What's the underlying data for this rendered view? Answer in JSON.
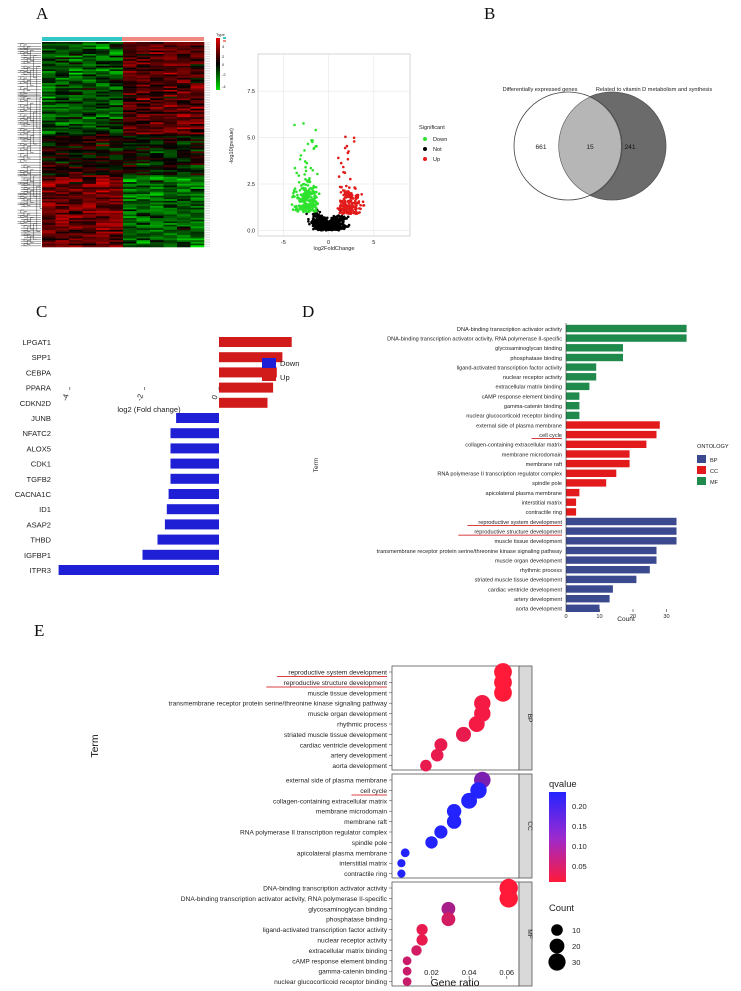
{
  "panel_labels": {
    "A": "A",
    "B": "B",
    "C": "C",
    "D": "D",
    "E": "E"
  },
  "colors": {
    "down_blue": "#1f1fd6",
    "up_red": "#d11a1a",
    "volcano_down": "#2ee22e",
    "volcano_up": "#e21a1a",
    "bp": "#3b4a8f",
    "cc": "#e31a1c",
    "mf": "#1f8a4c",
    "heat_low": "#00e000",
    "heat_high": "#e00000",
    "venn_left": "#ffffff",
    "venn_right": "#6b6b6b"
  },
  "chart_data": [
    {
      "panel": "A-heatmap",
      "type": "heatmap",
      "columns": 12,
      "rows": 120,
      "groups": [
        "left",
        "right"
      ],
      "legend_ticks": [
        "4",
        "2",
        "0",
        "-2",
        "-4"
      ],
      "legend_title": "Type"
    },
    {
      "panel": "A-volcano",
      "type": "scatter",
      "xlabel": "log2FoldChange",
      "ylabel": "-log10(pvalue)",
      "xticks": [
        -5,
        0,
        5
      ],
      "yticks": [
        0.0,
        2.5,
        5.0,
        7.5
      ],
      "xlim": [
        -7.8,
        9.0
      ],
      "ylim": [
        -0.3,
        9.5
      ],
      "legend_title": "Significant",
      "series": [
        {
          "name": "Down",
          "color": "#2ee22e"
        },
        {
          "name": "Not",
          "color": "#000000"
        },
        {
          "name": "Up",
          "color": "#e21a1a"
        }
      ]
    },
    {
      "panel": "B",
      "type": "venn",
      "set_labels": [
        "Differentially expressed genes",
        "Related to vitamin D metabolism and synthesis"
      ],
      "values": {
        "left_only": 661,
        "intersection": 15,
        "right_only": 241
      }
    },
    {
      "panel": "C",
      "type": "bar",
      "orientation": "horizontal",
      "categories": [
        "LPGAT1",
        "SPP1",
        "CEBPA",
        "PPARA",
        "CDKN2D",
        "JUNB",
        "NFATC2",
        "ALOX5",
        "CDK1",
        "TGFB2",
        "CACNA1C",
        "ID1",
        "ASAP2",
        "THBD",
        "IGFBP1",
        "ITPR3"
      ],
      "values": [
        1.95,
        1.7,
        1.55,
        1.45,
        1.3,
        -1.15,
        -1.3,
        -1.3,
        -1.3,
        -1.3,
        -1.35,
        -1.4,
        -1.45,
        -1.65,
        -2.05,
        -4.3
      ],
      "xlabel": "log2 (Fold change)",
      "xticks": [
        -4,
        -2,
        0
      ],
      "xlim": [
        -4.5,
        2.2
      ],
      "legend": [
        {
          "name": "Down",
          "color": "#1f1fd6"
        },
        {
          "name": "Up",
          "color": "#d11a1a"
        }
      ]
    },
    {
      "panel": "D",
      "type": "bar",
      "orientation": "horizontal",
      "xlabel": "Count",
      "ylabel": "Term",
      "xticks": [
        0,
        10,
        20,
        30
      ],
      "xlim": [
        0,
        36
      ],
      "legend_title": "ONTOLOGY",
      "legend": [
        {
          "name": "BP",
          "color": "#3b4a8f"
        },
        {
          "name": "CC",
          "color": "#e31a1c"
        },
        {
          "name": "MF",
          "color": "#1f8a4c"
        }
      ],
      "categories": [
        "DNA-binding transcription activator activity",
        "DNA-binding transcription activator activity, RNA polymerase II-specific",
        "glycosaminoglycan binding",
        "phosphatase binding",
        "ligand-activated transcription factor activity",
        "nuclear receptor activity",
        "extracellular matrix binding",
        "cAMP response element binding",
        "gamma-catenin binding",
        "nuclear glucocorticoid receptor binding",
        "external side of plasma membrane",
        "cell cycle",
        "collagen-containing extracellular matrix",
        "membrane microdomain",
        "membrane raft",
        "RNA polymerase II transcription regulator complex",
        "spindle pole",
        "apicolateral plasma membrane",
        "interstitial matrix",
        "contractile ring",
        "reproductive system development",
        "reproductive structure development",
        "muscle tissue development",
        "transmembrane receptor protein serine/threonine kinase signaling pathway",
        "muscle organ development",
        "rhythmic process",
        "striated muscle tissue development",
        "cardiac ventricle development",
        "artery development",
        "aorta development"
      ],
      "values": [
        36,
        36,
        17,
        17,
        9,
        9,
        7,
        4,
        4,
        4,
        28,
        27,
        24,
        19,
        19,
        15,
        12,
        4,
        3,
        3,
        33,
        33,
        33,
        27,
        27,
        25,
        21,
        14,
        13,
        10
      ],
      "ontology": [
        "MF",
        "MF",
        "MF",
        "MF",
        "MF",
        "MF",
        "MF",
        "MF",
        "MF",
        "MF",
        "CC",
        "CC",
        "CC",
        "CC",
        "CC",
        "CC",
        "CC",
        "CC",
        "CC",
        "CC",
        "BP",
        "BP",
        "BP",
        "BP",
        "BP",
        "BP",
        "BP",
        "BP",
        "BP",
        "BP"
      ],
      "underlined": [
        "cell cycle",
        "reproductive system development",
        "reproductive structure development"
      ]
    },
    {
      "panel": "E",
      "type": "scatter",
      "xlabel": "Gene ratio",
      "ylabel": "Term",
      "xticks": [
        0.02,
        0.04,
        0.06
      ],
      "xlim": [
        -0.001,
        0.0665
      ],
      "facets": [
        "BP",
        "CC",
        "MF"
      ],
      "color_legend": {
        "title": "qvalue",
        "ticks": [
          0.2,
          0.15,
          0.1,
          0.05
        ]
      },
      "size_legend": {
        "title": "Count",
        "values": [
          10,
          20,
          30
        ]
      },
      "groups": [
        {
          "facet": "BP",
          "terms": [
            "reproductive system development",
            "reproductive structure development",
            "muscle tissue development",
            "transmembrane receptor protein serine/threonine kinase signaling pathway",
            "muscle organ development",
            "rhythmic process",
            "striated muscle tissue development",
            "cardiac ventricle development",
            "artery development",
            "aorta development"
          ],
          "gene_ratio": [
            0.058,
            0.058,
            0.058,
            0.047,
            0.047,
            0.044,
            0.037,
            0.025,
            0.023,
            0.017
          ],
          "count": [
            33,
            33,
            33,
            27,
            27,
            25,
            21,
            14,
            13,
            10
          ],
          "qvalue": [
            0.02,
            0.02,
            0.02,
            0.03,
            0.03,
            0.03,
            0.04,
            0.04,
            0.04,
            0.04
          ]
        },
        {
          "facet": "CC",
          "terms": [
            "external side of plasma membrane",
            "cell cycle",
            "collagen-containing extracellular matrix",
            "membrane microdomain",
            "membrane raft",
            "RNA polymerase II transcription regulator complex",
            "spindle pole",
            "apicolateral plasma membrane",
            "interstitial matrix",
            "contractile ring"
          ],
          "gene_ratio": [
            0.047,
            0.045,
            0.04,
            0.032,
            0.032,
            0.025,
            0.02,
            0.006,
            0.004,
            0.004
          ],
          "count": [
            28,
            27,
            24,
            19,
            19,
            15,
            12,
            4,
            3,
            3
          ],
          "qvalue": [
            0.14,
            0.22,
            0.22,
            0.22,
            0.22,
            0.22,
            0.22,
            0.22,
            0.22,
            0.22
          ]
        },
        {
          "facet": "MF",
          "terms": [
            "DNA-binding transcription activator activity",
            "DNA-binding transcription activator activity, RNA polymerase II-specific",
            "glycosaminoglycan binding",
            "phosphatase binding",
            "ligand-activated transcription factor activity",
            "nuclear receptor activity",
            "extracellular matrix binding",
            "cAMP response element binding",
            "gamma-catenin binding",
            "nuclear glucocorticoid receptor binding"
          ],
          "gene_ratio": [
            0.061,
            0.061,
            0.029,
            0.029,
            0.015,
            0.015,
            0.012,
            0.007,
            0.007,
            0.007
          ],
          "count": [
            36,
            36,
            17,
            17,
            9,
            9,
            7,
            4,
            4,
            4
          ],
          "qvalue": [
            0.02,
            0.02,
            0.1,
            0.06,
            0.04,
            0.04,
            0.06,
            0.07,
            0.07,
            0.07
          ]
        }
      ]
    }
  ]
}
